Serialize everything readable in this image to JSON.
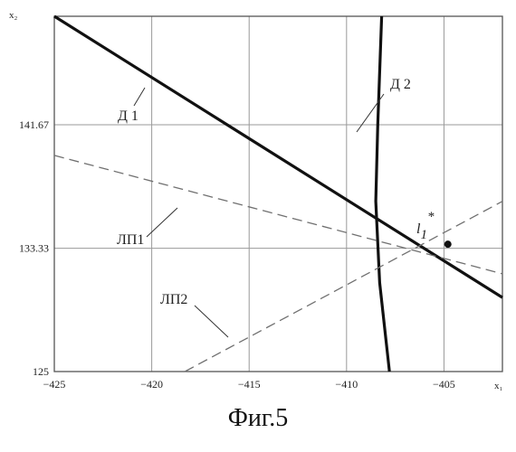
{
  "chart_data": {
    "type": "line",
    "xlabel": "x₁",
    "ylabel": "x₂",
    "xlim": [
      -425,
      -402
    ],
    "ylim": [
      125,
      149
    ],
    "x_ticks": [
      {
        "value": -425,
        "label": "−425"
      },
      {
        "value": -420,
        "label": "−420"
      },
      {
        "value": -415,
        "label": "−415"
      },
      {
        "value": -410,
        "label": "−410"
      },
      {
        "value": -405,
        "label": "−405"
      }
    ],
    "y_ticks": [
      {
        "value": 125,
        "label": "125"
      },
      {
        "value": 133.33,
        "label": "133.33"
      },
      {
        "value": 141.67,
        "label": "141.67"
      }
    ],
    "series": [
      {
        "name": "Д 1",
        "style": "solid-thick",
        "points": [
          [
            -425,
            149
          ],
          [
            -402,
            130.0
          ]
        ]
      },
      {
        "name": "Д 2",
        "style": "solid-thick",
        "points": [
          [
            -408.2,
            149
          ],
          [
            -408.4,
            141.67
          ],
          [
            -408.5,
            136.5
          ],
          [
            -408.3,
            131.0
          ],
          [
            -407.8,
            125
          ]
        ]
      },
      {
        "name": "ЛП1",
        "style": "dashed",
        "points": [
          [
            -425,
            139.6
          ],
          [
            -402,
            131.6
          ]
        ]
      },
      {
        "name": "ЛП2",
        "style": "dashed",
        "points": [
          [
            -418.3,
            125
          ],
          [
            -402,
            136.5
          ]
        ]
      }
    ],
    "marker": {
      "label": "l",
      "subscript": "1",
      "superscript": "*",
      "x": -404.8,
      "y": 133.6
    },
    "grid": true,
    "caption": "Фиг.5"
  }
}
